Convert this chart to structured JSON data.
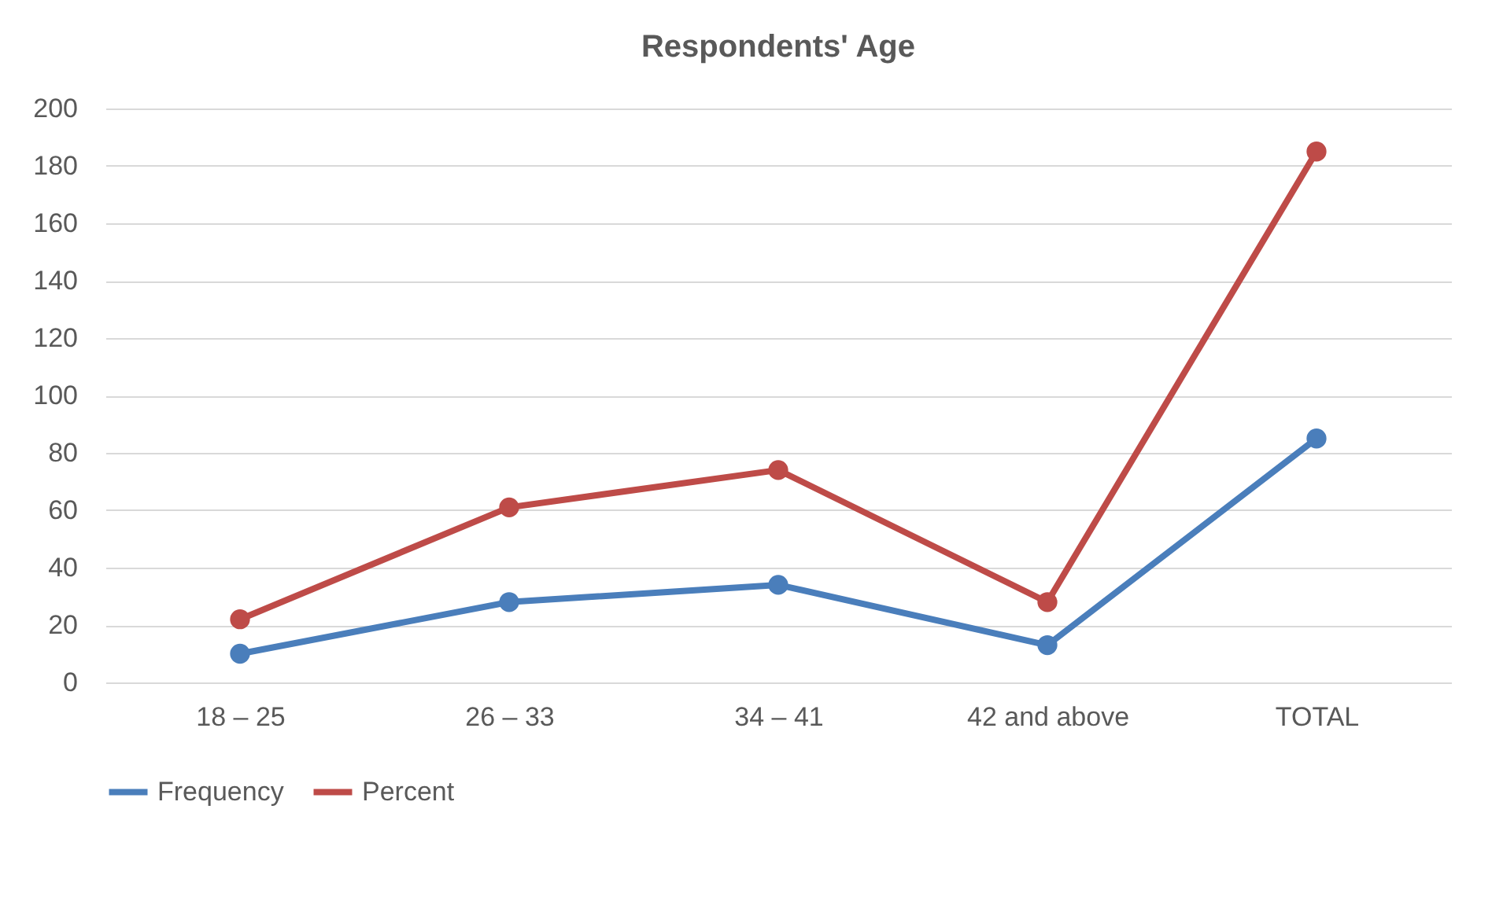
{
  "chart_data": {
    "type": "line",
    "title": "Respondents' Age",
    "categories": [
      "18 – 25",
      "26 – 33",
      "34 – 41",
      "42 and above",
      "TOTAL"
    ],
    "series": [
      {
        "name": "Frequency",
        "color": "#4a7ebb",
        "values": [
          10,
          28,
          34,
          13,
          85
        ]
      },
      {
        "name": "Percent",
        "color": "#be4b48",
        "values": [
          22,
          61,
          74,
          28,
          185
        ]
      }
    ],
    "ylim": [
      0,
      200
    ],
    "yticks": [
      0,
      20,
      40,
      60,
      80,
      100,
      120,
      140,
      160,
      180,
      200
    ],
    "grid": "y",
    "legend": "bottom",
    "marker": "circle",
    "line_style": "solid"
  }
}
